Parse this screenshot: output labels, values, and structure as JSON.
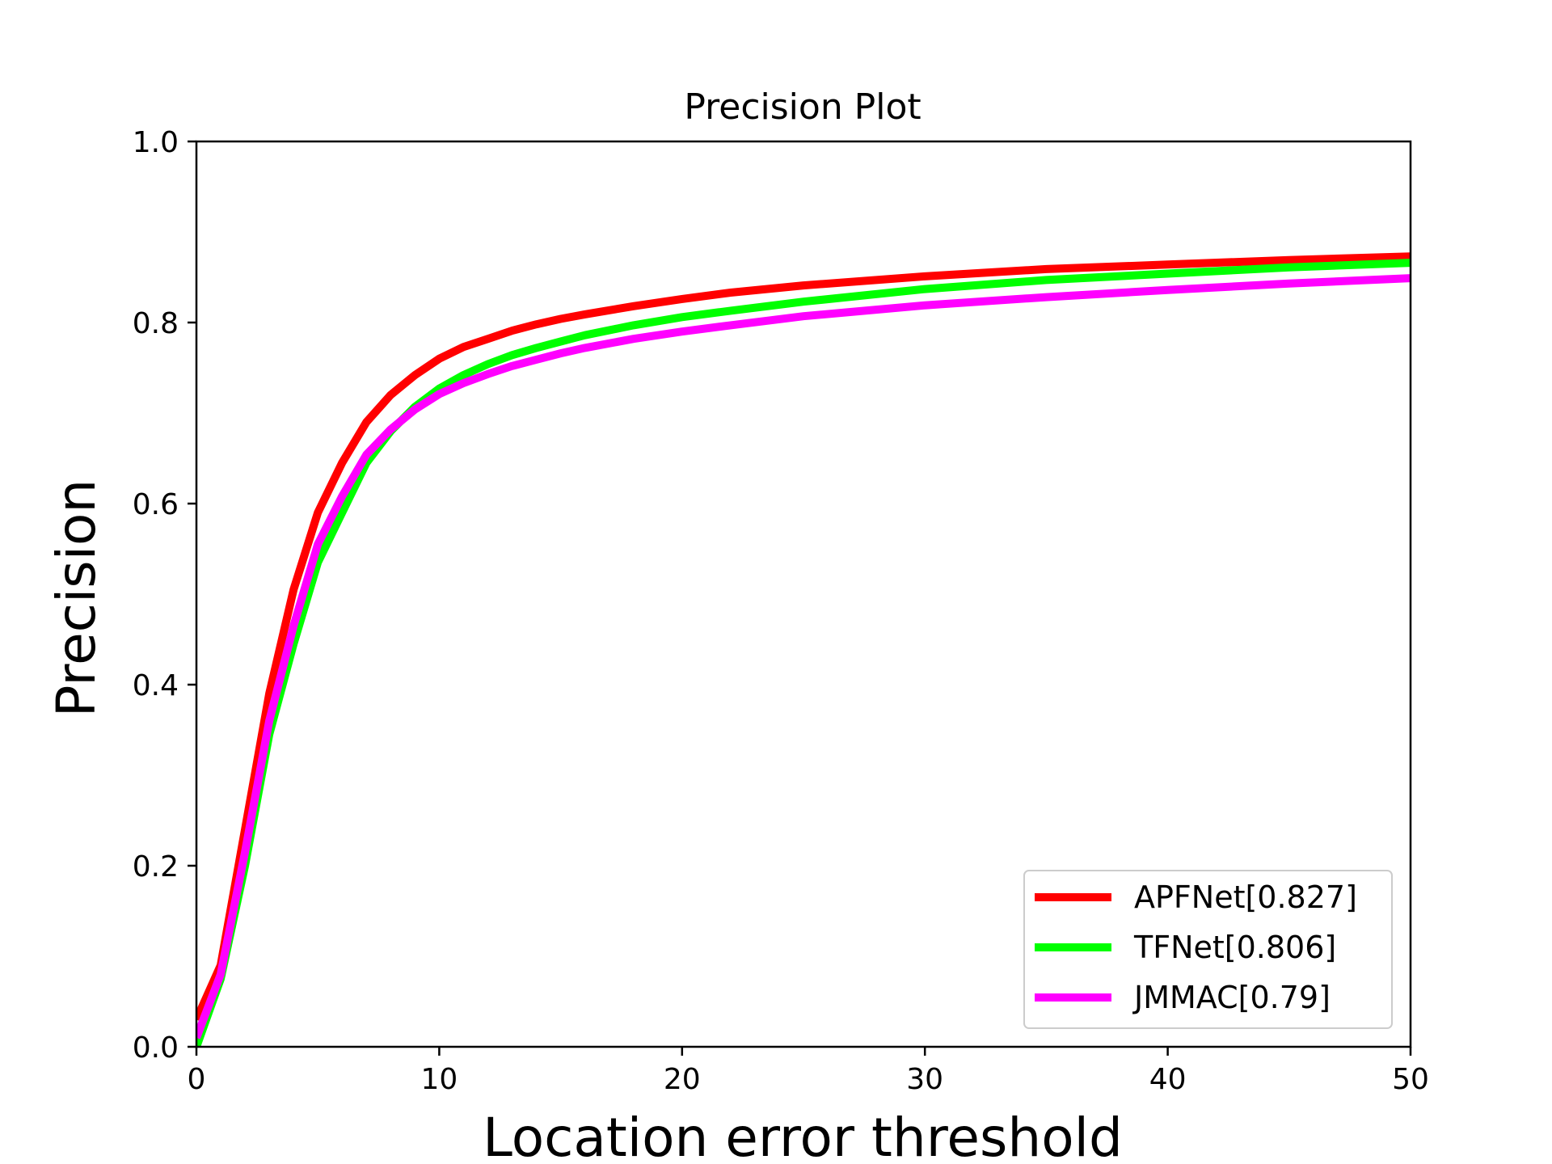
{
  "chart_data": {
    "type": "line",
    "title": "Precision Plot",
    "xlabel": "Location error threshold",
    "ylabel": "Precision",
    "xlim": [
      0,
      50
    ],
    "ylim": [
      0,
      1
    ],
    "xticks": [
      0,
      10,
      20,
      30,
      40,
      50
    ],
    "yticks": [
      0.0,
      0.2,
      0.4,
      0.6,
      0.8,
      1.0
    ],
    "xtick_labels": [
      "0",
      "10",
      "20",
      "30",
      "40",
      "50"
    ],
    "ytick_labels": [
      "0.0",
      "0.2",
      "0.4",
      "0.6",
      "0.8",
      "1.0"
    ],
    "grid": false,
    "legend_position": "bottom-right",
    "x": [
      0,
      1,
      2,
      3,
      4,
      5,
      6,
      7,
      8,
      9,
      10,
      11,
      12,
      13,
      14,
      15,
      16,
      18,
      20,
      22,
      25,
      30,
      35,
      40,
      45,
      50
    ],
    "series": [
      {
        "name": "APFNet[0.827]",
        "color": "#ff0000",
        "values": [
          0.03,
          0.09,
          0.24,
          0.39,
          0.505,
          0.59,
          0.645,
          0.69,
          0.72,
          0.742,
          0.76,
          0.773,
          0.782,
          0.791,
          0.798,
          0.804,
          0.809,
          0.818,
          0.826,
          0.833,
          0.841,
          0.851,
          0.859,
          0.864,
          0.869,
          0.873
        ]
      },
      {
        "name": "TFNet[0.806]",
        "color": "#00ff00",
        "values": [
          0.0,
          0.075,
          0.2,
          0.345,
          0.445,
          0.535,
          0.59,
          0.645,
          0.68,
          0.707,
          0.727,
          0.742,
          0.754,
          0.764,
          0.772,
          0.779,
          0.786,
          0.797,
          0.806,
          0.813,
          0.823,
          0.837,
          0.847,
          0.854,
          0.861,
          0.866
        ]
      },
      {
        "name": "JMMAC[0.79]",
        "color": "#ff00ff",
        "values": [
          0.01,
          0.08,
          0.215,
          0.36,
          0.465,
          0.555,
          0.608,
          0.654,
          0.682,
          0.704,
          0.721,
          0.733,
          0.743,
          0.752,
          0.759,
          0.766,
          0.772,
          0.782,
          0.79,
          0.797,
          0.807,
          0.819,
          0.828,
          0.836,
          0.843,
          0.849
        ]
      }
    ]
  }
}
